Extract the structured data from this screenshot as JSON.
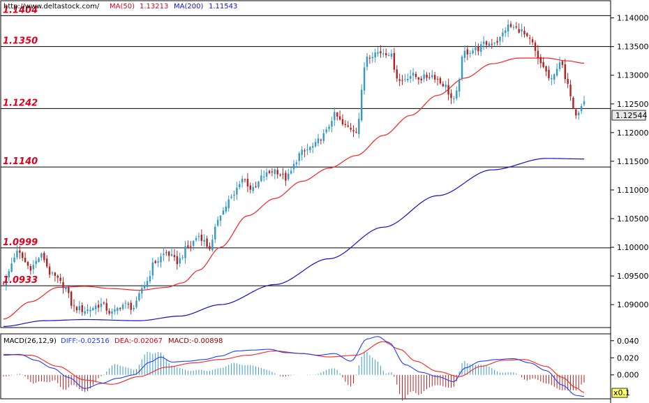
{
  "header": {
    "site": "http://www.deltastock.com/",
    "ma50_label": "MA(50)",
    "ma50_value": "1.13213",
    "ma200_label": "MA(200)",
    "ma200_value": "1.11543"
  },
  "macd_header": {
    "label": "MACD(26,12,9)",
    "diff": "DIFF:-0.02516",
    "dea": "DEA:-0.02067",
    "macd": "MACD:-0.00898"
  },
  "price_badge": "1.12544",
  "scale_badge": "x0.1",
  "colors": {
    "up": "#3399cc",
    "down": "#b22222",
    "ma50": "#ff2020",
    "ma200": "#1010d0",
    "levels": "#e0001b",
    "diff": "#1e3cff",
    "dea": "#ff2020"
  },
  "chart_data": [
    {
      "type": "candlestick",
      "ylim": [
        1.086,
        1.143
      ],
      "yticks": [
        "1.14000",
        "1.13500",
        "1.13000",
        "1.12500",
        "1.12000",
        "1.11500",
        "1.11000",
        "1.10500",
        "1.10000",
        "1.09500",
        "1.09000"
      ],
      "levels": [
        {
          "value": 1.1404,
          "label": "1.1404"
        },
        {
          "value": 1.135,
          "label": "1.1350"
        },
        {
          "value": 1.1242,
          "label": "1.1242"
        },
        {
          "value": 1.114,
          "label": "1.1140"
        },
        {
          "value": 1.0999,
          "label": "1.0999"
        },
        {
          "value": 1.0933,
          "label": "1.0933"
        }
      ],
      "close_anchors": [
        [
          0,
          1.094
        ],
        [
          5,
          1.099
        ],
        [
          10,
          1.0965
        ],
        [
          14,
          1.0985
        ],
        [
          18,
          1.095
        ],
        [
          22,
          1.0935
        ],
        [
          26,
          1.0895
        ],
        [
          30,
          1.089
        ],
        [
          36,
          1.09
        ],
        [
          40,
          1.0885
        ],
        [
          44,
          1.09
        ],
        [
          48,
          1.0895
        ],
        [
          52,
          1.0935
        ],
        [
          56,
          1.0975
        ],
        [
          60,
          1.099
        ],
        [
          64,
          1.0975
        ],
        [
          68,
          1.1
        ],
        [
          72,
          1.102
        ],
        [
          76,
          1.1
        ],
        [
          80,
          1.106
        ],
        [
          84,
          1.1085
        ],
        [
          88,
          1.112
        ],
        [
          92,
          1.11
        ],
        [
          96,
          1.1125
        ],
        [
          100,
          1.1135
        ],
        [
          104,
          1.112
        ],
        [
          110,
          1.1165
        ],
        [
          114,
          1.1175
        ],
        [
          118,
          1.1195
        ],
        [
          122,
          1.123
        ],
        [
          126,
          1.121
        ],
        [
          130,
          1.1205
        ],
        [
          134,
          1.1335
        ],
        [
          138,
          1.134
        ],
        [
          142,
          1.134
        ],
        [
          146,
          1.129
        ],
        [
          150,
          1.13
        ],
        [
          154,
          1.1295
        ],
        [
          158,
          1.13
        ],
        [
          162,
          1.1285
        ],
        [
          166,
          1.1255
        ],
        [
          170,
          1.134
        ],
        [
          174,
          1.1345
        ],
        [
          178,
          1.1355
        ],
        [
          182,
          1.136
        ],
        [
          186,
          1.1385
        ],
        [
          190,
          1.138
        ],
        [
          194,
          1.136
        ],
        [
          198,
          1.132
        ],
        [
          202,
          1.129
        ],
        [
          205,
          1.1325
        ],
        [
          208,
          1.128
        ],
        [
          211,
          1.1235
        ],
        [
          214,
          1.1254
        ]
      ],
      "ma50_anchors": [
        [
          0,
          1.0875
        ],
        [
          10,
          1.0905
        ],
        [
          20,
          1.093
        ],
        [
          30,
          1.0932
        ],
        [
          40,
          1.0928
        ],
        [
          50,
          1.0925
        ],
        [
          60,
          1.093
        ],
        [
          66,
          1.0938
        ],
        [
          72,
          1.096
        ],
        [
          80,
          1.1
        ],
        [
          90,
          1.1055
        ],
        [
          100,
          1.1085
        ],
        [
          110,
          1.1115
        ],
        [
          120,
          1.1138
        ],
        [
          130,
          1.116
        ],
        [
          140,
          1.1195
        ],
        [
          150,
          1.123
        ],
        [
          160,
          1.1265
        ],
        [
          170,
          1.1295
        ],
        [
          180,
          1.132
        ],
        [
          190,
          1.133
        ],
        [
          200,
          1.133
        ],
        [
          208,
          1.1325
        ],
        [
          214,
          1.1321
        ]
      ],
      "ma200_anchors": [
        [
          0,
          1.0862
        ],
        [
          15,
          1.0872
        ],
        [
          30,
          1.0874
        ],
        [
          50,
          1.0872
        ],
        [
          65,
          1.088
        ],
        [
          80,
          1.09
        ],
        [
          100,
          1.0935
        ],
        [
          120,
          1.098
        ],
        [
          140,
          1.1035
        ],
        [
          160,
          1.109
        ],
        [
          180,
          1.1135
        ],
        [
          200,
          1.1155
        ],
        [
          214,
          1.1154
        ]
      ],
      "series": [
        {
          "name": "MA(50)",
          "value": 1.13213
        },
        {
          "name": "MA(200)",
          "value": 1.11543
        }
      ]
    },
    {
      "type": "macd",
      "ylim": [
        -0.028,
        0.048
      ],
      "yticks": [
        "0.040",
        "0.020",
        "0.000"
      ],
      "diff_anchors": [
        [
          0,
          0.023
        ],
        [
          6,
          0.024
        ],
        [
          12,
          0.017
        ],
        [
          18,
          0.008
        ],
        [
          24,
          -0.003
        ],
        [
          30,
          -0.016
        ],
        [
          36,
          -0.01
        ],
        [
          42,
          -0.004
        ],
        [
          48,
          0.0
        ],
        [
          54,
          0.015
        ],
        [
          58,
          0.021
        ],
        [
          62,
          0.015
        ],
        [
          68,
          0.016
        ],
        [
          74,
          0.018
        ],
        [
          80,
          0.022
        ],
        [
          86,
          0.028
        ],
        [
          92,
          0.029
        ],
        [
          98,
          0.03
        ],
        [
          104,
          0.026
        ],
        [
          110,
          0.025
        ],
        [
          116,
          0.023
        ],
        [
          122,
          0.025
        ],
        [
          128,
          0.016
        ],
        [
          134,
          0.042
        ],
        [
          138,
          0.045
        ],
        [
          142,
          0.038
        ],
        [
          148,
          0.012
        ],
        [
          154,
          0.003
        ],
        [
          160,
          -0.002
        ],
        [
          166,
          -0.008
        ],
        [
          170,
          0.008
        ],
        [
          176,
          0.016
        ],
        [
          182,
          0.018
        ],
        [
          188,
          0.019
        ],
        [
          194,
          0.014
        ],
        [
          200,
          0.005
        ],
        [
          206,
          -0.012
        ],
        [
          211,
          -0.024
        ],
        [
          214,
          -0.0252
        ]
      ],
      "dea_anchors": [
        [
          0,
          0.024
        ],
        [
          10,
          0.023
        ],
        [
          20,
          0.01
        ],
        [
          30,
          -0.006
        ],
        [
          40,
          -0.011
        ],
        [
          50,
          -0.002
        ],
        [
          60,
          0.009
        ],
        [
          70,
          0.014
        ],
        [
          80,
          0.018
        ],
        [
          90,
          0.023
        ],
        [
          100,
          0.028
        ],
        [
          110,
          0.025
        ],
        [
          120,
          0.021
        ],
        [
          130,
          0.023
        ],
        [
          140,
          0.039
        ],
        [
          146,
          0.03
        ],
        [
          152,
          0.016
        ],
        [
          160,
          0.004
        ],
        [
          168,
          -0.002
        ],
        [
          176,
          0.01
        ],
        [
          184,
          0.017
        ],
        [
          192,
          0.018
        ],
        [
          200,
          0.01
        ],
        [
          206,
          -0.003
        ],
        [
          211,
          -0.015
        ],
        [
          214,
          -0.0207
        ]
      ]
    }
  ]
}
